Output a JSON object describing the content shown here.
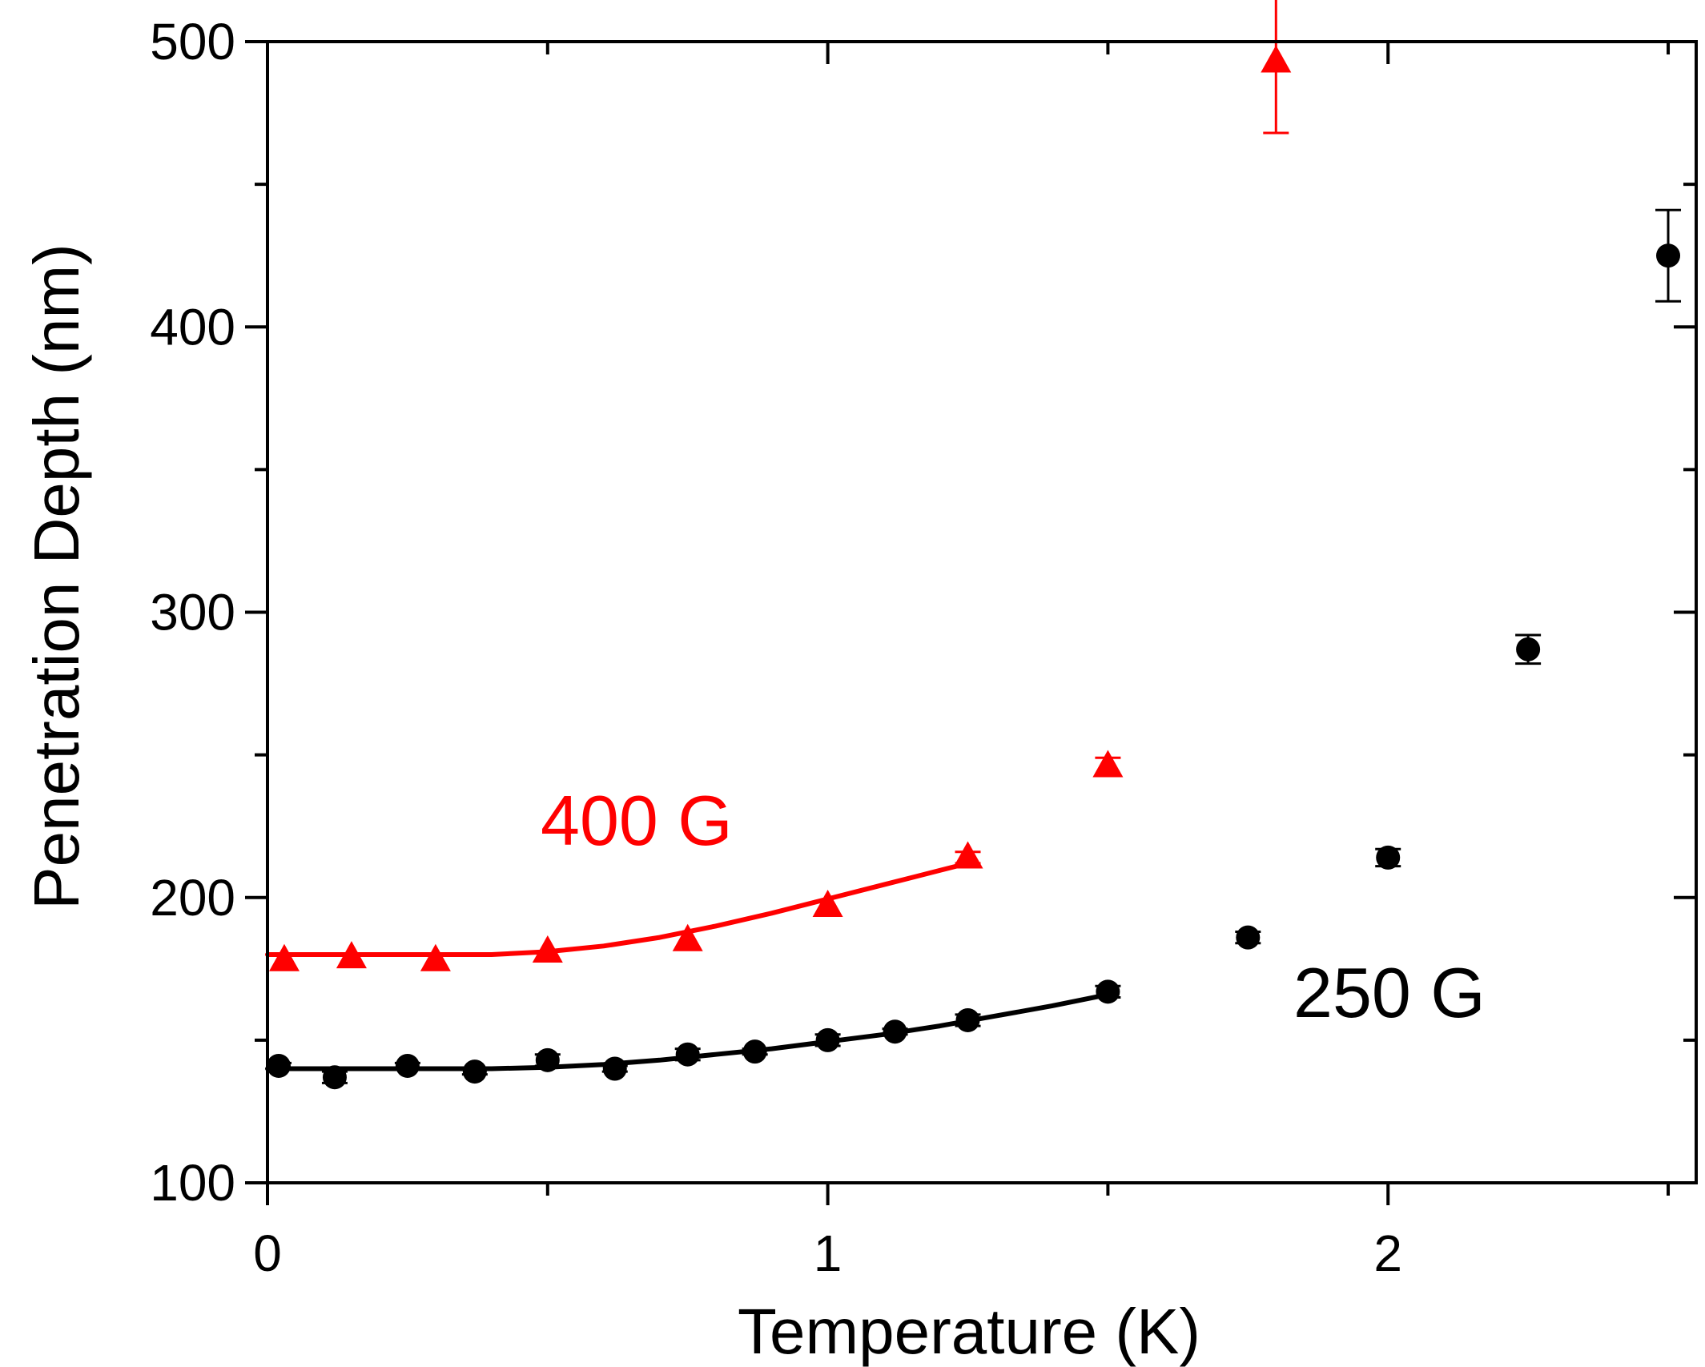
{
  "chart_data": {
    "type": "scatter",
    "title": "",
    "xlabel": "Temperature (K)",
    "ylabel": "Penetration Depth (nm)",
    "xlim": [
      0,
      2.55
    ],
    "ylim": [
      100,
      500
    ],
    "xticks": [
      0,
      1,
      2
    ],
    "xtick_labels": [
      "0",
      "1",
      "2"
    ],
    "xminor": [
      0.5,
      1.5,
      2.5
    ],
    "yticks": [
      100,
      200,
      300,
      400,
      500
    ],
    "ytick_labels": [
      "100",
      "200",
      "300",
      "400",
      "500"
    ],
    "yminor": [
      150,
      250,
      350,
      450
    ],
    "grid": false,
    "series": [
      {
        "name": "400 G",
        "label": "400 G",
        "color": "#ff0000",
        "marker": "triangle",
        "points": [
          {
            "x": 0.03,
            "y": 178,
            "err": 0
          },
          {
            "x": 0.15,
            "y": 179,
            "err": 0
          },
          {
            "x": 0.3,
            "y": 178,
            "err": 0
          },
          {
            "x": 0.5,
            "y": 181,
            "err": 0
          },
          {
            "x": 0.75,
            "y": 185,
            "err": 0
          },
          {
            "x": 1.0,
            "y": 197,
            "err": 0
          },
          {
            "x": 1.25,
            "y": 214,
            "err": 2
          },
          {
            "x": 1.5,
            "y": 246,
            "err": 3
          },
          {
            "x": 1.8,
            "y": 493,
            "err": 25
          }
        ],
        "fit": {
          "x": [
            0.0,
            0.2,
            0.4,
            0.5,
            0.6,
            0.7,
            0.8,
            0.9,
            1.0,
            1.1,
            1.2,
            1.25
          ],
          "y": [
            180,
            180,
            180,
            181,
            183,
            186,
            190,
            194.5,
            199.5,
            204.5,
            209.5,
            212
          ]
        }
      },
      {
        "name": "250 G",
        "label": "250 G",
        "color": "#000000",
        "marker": "circle",
        "points": [
          {
            "x": 0.02,
            "y": 141,
            "err": 1
          },
          {
            "x": 0.12,
            "y": 137,
            "err": 2
          },
          {
            "x": 0.25,
            "y": 141,
            "err": 1
          },
          {
            "x": 0.37,
            "y": 139,
            "err": 1
          },
          {
            "x": 0.5,
            "y": 143,
            "err": 2
          },
          {
            "x": 0.62,
            "y": 140,
            "err": 1
          },
          {
            "x": 0.75,
            "y": 145,
            "err": 2
          },
          {
            "x": 0.87,
            "y": 146,
            "err": 1
          },
          {
            "x": 1.0,
            "y": 150,
            "err": 2
          },
          {
            "x": 1.12,
            "y": 153,
            "err": 1
          },
          {
            "x": 1.25,
            "y": 157,
            "err": 2
          },
          {
            "x": 1.5,
            "y": 167,
            "err": 2
          },
          {
            "x": 1.75,
            "y": 186,
            "err": 2
          },
          {
            "x": 2.0,
            "y": 214,
            "err": 3
          },
          {
            "x": 2.25,
            "y": 287,
            "err": 5
          },
          {
            "x": 2.5,
            "y": 425,
            "err": 16
          }
        ],
        "fit": {
          "x": [
            0.0,
            0.2,
            0.4,
            0.5,
            0.6,
            0.7,
            0.8,
            0.9,
            1.0,
            1.1,
            1.2,
            1.3,
            1.4,
            1.5
          ],
          "y": [
            140,
            140,
            140,
            140.5,
            141.5,
            143,
            145,
            147,
            149.5,
            152,
            155,
            158.5,
            162,
            166
          ]
        }
      }
    ]
  }
}
